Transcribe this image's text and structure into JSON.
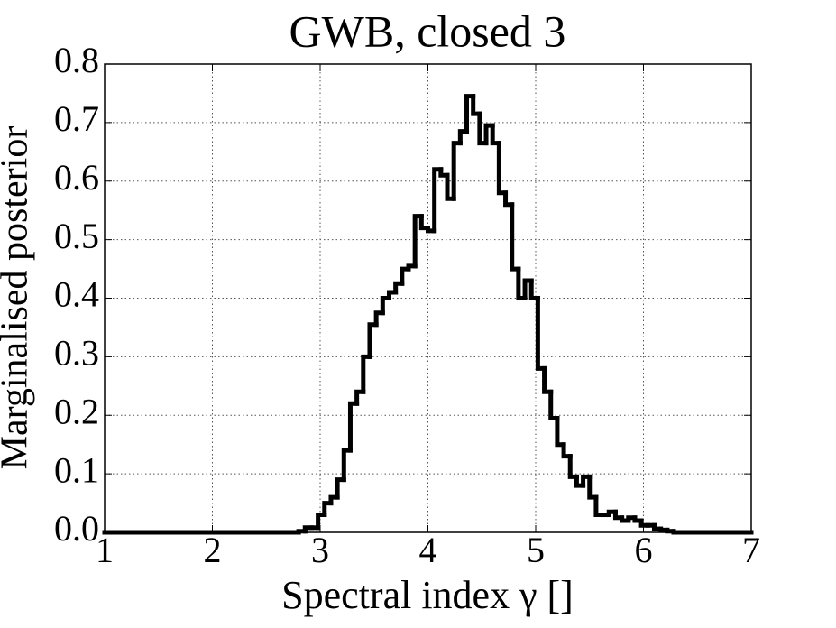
{
  "chart_data": {
    "type": "histogram",
    "title": "GWB, closed 3",
    "xlabel": "Spectral index γ []",
    "ylabel": "Marginalised posterior",
    "bins": [
      1,
      1.06,
      1.12,
      1.18,
      1.24,
      1.3,
      1.36,
      1.42,
      1.48,
      1.54,
      1.6,
      1.66,
      1.72,
      1.78,
      1.84,
      1.9,
      1.96,
      2.02,
      2.08,
      2.14,
      2.2,
      2.26,
      2.32,
      2.38,
      2.44,
      2.5,
      2.56,
      2.62,
      2.68,
      2.74,
      2.8,
      2.86,
      2.92,
      2.98,
      3.04,
      3.1,
      3.16,
      3.22,
      3.28,
      3.34,
      3.4,
      3.46,
      3.52,
      3.58,
      3.64,
      3.7,
      3.76,
      3.82,
      3.88,
      3.94,
      4,
      4.06,
      4.12,
      4.18,
      4.24,
      4.3,
      4.36,
      4.42,
      4.48,
      4.54,
      4.6,
      4.66,
      4.72,
      4.78,
      4.84,
      4.9,
      4.96,
      5.02,
      5.08,
      5.14,
      5.2,
      5.26,
      5.32,
      5.38,
      5.44,
      5.5,
      5.56,
      5.62,
      5.68,
      5.74,
      5.8,
      5.86,
      5.92,
      5.98,
      6.04,
      6.1,
      6.16,
      6.22,
      6.28,
      6.34,
      6.4,
      6.46,
      6.52,
      6.58,
      6.64,
      6.7,
      6.76,
      6.82,
      6.88,
      6.94,
      7
    ],
    "values": [
      0,
      0,
      0,
      0,
      0,
      0,
      0,
      0,
      0,
      0,
      0,
      0,
      0,
      0,
      0,
      0,
      0,
      0,
      0,
      0,
      0,
      0,
      0,
      0,
      0,
      0,
      0,
      0,
      0,
      0,
      0.002,
      0.008,
      0.008,
      0.03,
      0.05,
      0.06,
      0.09,
      0.14,
      0.22,
      0.24,
      0.3,
      0.355,
      0.375,
      0.4,
      0.41,
      0.425,
      0.45,
      0.455,
      0.54,
      0.52,
      0.515,
      0.62,
      0.61,
      0.57,
      0.665,
      0.685,
      0.745,
      0.715,
      0.665,
      0.695,
      0.665,
      0.58,
      0.56,
      0.45,
      0.4,
      0.43,
      0.4,
      0.28,
      0.24,
      0.195,
      0.15,
      0.13,
      0.095,
      0.08,
      0.095,
      0.06,
      0.03,
      0.03,
      0.035,
      0.025,
      0.02,
      0.025,
      0.02,
      0.012,
      0.012,
      0.006,
      0.004,
      0.002,
      0,
      0,
      0,
      0,
      0,
      0,
      0,
      0,
      0,
      0,
      0,
      0
    ],
    "color": "#000000",
    "xlim": [
      1,
      7
    ],
    "xticks": [
      1,
      2,
      3,
      4,
      5,
      6,
      7
    ],
    "ylim": [
      0,
      0.8
    ],
    "yticks": [
      {
        "value": 0,
        "label": "0.0"
      },
      0.1,
      0.2,
      0.3,
      0.4,
      0.5,
      0.6,
      0.7,
      0.8
    ],
    "grid": true
  }
}
